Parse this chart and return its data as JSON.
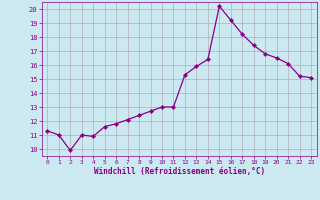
{
  "x": [
    0,
    1,
    2,
    3,
    4,
    5,
    6,
    7,
    8,
    9,
    10,
    11,
    12,
    13,
    14,
    15,
    16,
    17,
    18,
    19,
    20,
    21,
    22,
    23
  ],
  "y": [
    11.3,
    11.0,
    9.9,
    11.0,
    10.9,
    11.6,
    11.8,
    12.1,
    12.4,
    12.7,
    13.0,
    13.0,
    15.3,
    15.9,
    16.4,
    20.2,
    19.2,
    18.2,
    17.4,
    16.8,
    16.5,
    16.1,
    15.2,
    15.1
  ],
  "line_color": "#880088",
  "marker": "D",
  "marker_size": 2.2,
  "background_color": "#cce8f0",
  "grid_color": "#b0b0b0",
  "xlabel": "Windchill (Refroidissement éolien,°C)",
  "xlabel_color": "#880088",
  "tick_color": "#880088",
  "ylim": [
    9.5,
    20.5
  ],
  "xlim": [
    -0.5,
    23.5
  ],
  "yticks": [
    10,
    11,
    12,
    13,
    14,
    15,
    16,
    17,
    18,
    19,
    20
  ],
  "xticks": [
    0,
    1,
    2,
    3,
    4,
    5,
    6,
    7,
    8,
    9,
    10,
    11,
    12,
    13,
    14,
    15,
    16,
    17,
    18,
    19,
    20,
    21,
    22,
    23
  ]
}
